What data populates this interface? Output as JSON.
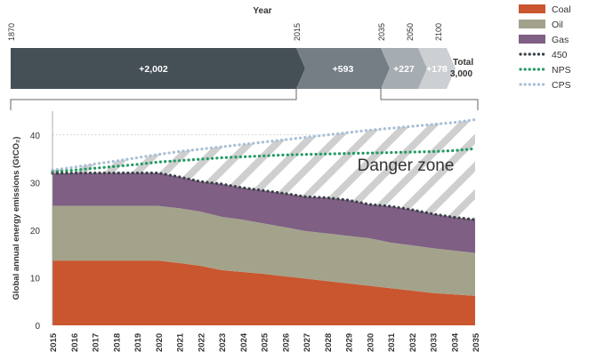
{
  "chart_data": [
    {
      "type": "bar",
      "orientation": "horizontal-stacked-arrows",
      "title": "Year",
      "year_markers": [
        "1870",
        "2015",
        "2035",
        "2050",
        "2100"
      ],
      "segments": [
        {
          "label": "+2,002",
          "value": 2002,
          "color": "#454f56"
        },
        {
          "label": "+593",
          "value": 593,
          "color": "#757e85"
        },
        {
          "label": "+227",
          "value": 227,
          "color": "#a6adb2"
        },
        {
          "label": "+178",
          "value": 178,
          "color": "#ccd0d3"
        }
      ],
      "total_label": "Total",
      "total_value": "3,000"
    },
    {
      "type": "area",
      "stacked": true,
      "ylabel": "Global annual energy emissions (GtCO₂)",
      "ylim": [
        0,
        45
      ],
      "yticks": [
        0,
        10,
        20,
        30,
        40
      ],
      "grid": "horizontal dotted",
      "x": [
        2015,
        2016,
        2017,
        2018,
        2019,
        2020,
        2021,
        2022,
        2023,
        2024,
        2025,
        2026,
        2027,
        2028,
        2029,
        2030,
        2031,
        2032,
        2033,
        2034,
        2035
      ],
      "series": [
        {
          "name": "Coal",
          "kind": "area",
          "color": "#c9562f",
          "values": [
            13.6,
            13.6,
            13.6,
            13.6,
            13.6,
            13.6,
            13.1,
            12.5,
            11.6,
            11.2,
            10.8,
            10.3,
            9.8,
            9.3,
            8.8,
            8.3,
            7.8,
            7.3,
            6.8,
            6.5,
            6.2
          ]
        },
        {
          "name": "Oil",
          "kind": "area",
          "color": "#a3a38b",
          "values": [
            11.5,
            11.5,
            11.5,
            11.5,
            11.5,
            11.5,
            11.5,
            11.4,
            11.2,
            11.0,
            10.6,
            10.3,
            10.0,
            10.0,
            10.0,
            10.0,
            9.6,
            9.5,
            9.4,
            9.2,
            9.0
          ]
        },
        {
          "name": "Gas",
          "kind": "area",
          "color": "#7f5f83",
          "values": [
            6.8,
            6.9,
            6.9,
            6.9,
            6.9,
            6.9,
            6.6,
            6.3,
            6.9,
            6.7,
            6.9,
            7.1,
            7.2,
            7.5,
            7.5,
            7.1,
            7.6,
            7.5,
            7.2,
            7.0,
            7.0
          ]
        },
        {
          "name": "450",
          "kind": "dotted-line",
          "color": "#3a4148",
          "values": [
            31.9,
            32.0,
            32.0,
            32.0,
            32.0,
            32.0,
            31.2,
            30.2,
            29.7,
            28.9,
            28.3,
            27.7,
            27.0,
            26.8,
            26.3,
            25.4,
            25.0,
            24.3,
            23.4,
            22.7,
            22.2
          ]
        },
        {
          "name": "NPS",
          "kind": "dotted-line",
          "color": "#239a64",
          "values": [
            32.2,
            32.6,
            33.0,
            33.4,
            33.8,
            34.3,
            34.6,
            34.9,
            35.2,
            35.4,
            35.6,
            35.8,
            35.9,
            36.0,
            36.1,
            36.2,
            36.3,
            36.4,
            36.5,
            36.7,
            37.1
          ]
        },
        {
          "name": "CPS",
          "kind": "dotted-line",
          "color": "#a8bfd6",
          "values": [
            32.6,
            33.2,
            33.9,
            34.5,
            35.2,
            35.9,
            36.5,
            37.0,
            37.5,
            38.0,
            38.5,
            39.0,
            39.5,
            40.0,
            40.5,
            41.0,
            41.4,
            41.8,
            42.2,
            42.6,
            43.2
          ]
        }
      ],
      "annotation": "Danger zone",
      "legend": {
        "placement": "top-right",
        "items": [
          "Coal",
          "Oil",
          "Gas",
          "450",
          "NPS",
          "CPS"
        ]
      }
    }
  ]
}
